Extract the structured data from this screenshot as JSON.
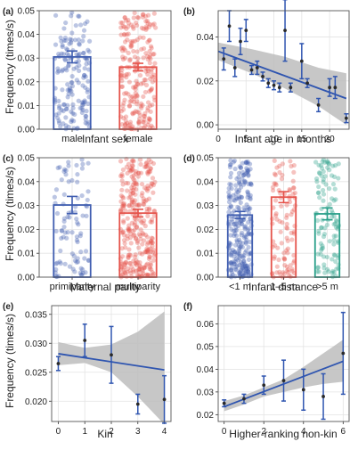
{
  "figure": {
    "ylabel": "Frequency (times/s)"
  },
  "chart_data": [
    {
      "id": "a",
      "panel_label": "(a)",
      "type": "bar",
      "xlabel": "Infant sex",
      "categories": [
        "male",
        "female"
      ],
      "values": [
        0.0305,
        0.0262
      ],
      "errors": [
        0.0025,
        0.0016
      ],
      "ylim": [
        0,
        0.05
      ],
      "yticks": [
        0.0,
        0.01,
        0.02,
        0.03,
        0.04,
        0.05
      ],
      "ytick_labels": [
        "0.00",
        "0.01",
        "0.02",
        "0.03",
        "0.04",
        "0.05"
      ],
      "points_per_category": [
        160,
        230
      ],
      "colors": [
        "#3f5db0",
        "#e5534b"
      ],
      "grid": true
    },
    {
      "id": "b",
      "panel_label": "(b)",
      "type": "scatter",
      "xlabel": "Infant age in months",
      "x": [
        1,
        2,
        3,
        4,
        5,
        6,
        7,
        8,
        9,
        10,
        11,
        12,
        13,
        15,
        16,
        18,
        20,
        21,
        23
      ],
      "y": [
        0.03,
        0.045,
        0.026,
        0.038,
        0.043,
        0.025,
        0.026,
        0.022,
        0.019,
        0.018,
        0.017,
        0.043,
        0.017,
        0.029,
        0.019,
        0.009,
        0.017,
        0.017,
        0.003
      ],
      "err": [
        0.005,
        0.007,
        0.004,
        0.006,
        0.005,
        0.002,
        0.003,
        0.002,
        0.002,
        0.002,
        0.002,
        0.014,
        0.002,
        0.008,
        0.002,
        0.003,
        0.004,
        0.005,
        0.002
      ],
      "fit": {
        "x": [
          0,
          23
        ],
        "y": [
          0.0335,
          0.012
        ]
      },
      "band_lower": [
        0.0295,
        0.0235,
        0.0165,
        0.0085,
        0.0
      ],
      "band_upper": [
        0.0375,
        0.0345,
        0.031,
        0.026,
        0.0235
      ],
      "band_x": [
        0,
        6,
        12,
        18,
        23
      ],
      "xlim": [
        0,
        23.5
      ],
      "ylim": [
        -0.002,
        0.052
      ],
      "xticks": [
        0,
        5,
        10,
        15,
        20
      ],
      "yticks": [
        0.0,
        0.02,
        0.04
      ],
      "ytick_labels": [
        "0.00",
        "0.02",
        "0.04"
      ],
      "grid": true
    },
    {
      "id": "c",
      "panel_label": "(c)",
      "type": "bar",
      "xlabel": "Maternal parity",
      "categories": [
        "primiparity",
        "multiparity"
      ],
      "values": [
        0.0302,
        0.0268
      ],
      "errors": [
        0.0036,
        0.0016
      ],
      "ylim": [
        0,
        0.05
      ],
      "yticks": [
        0.0,
        0.01,
        0.02,
        0.03,
        0.04,
        0.05
      ],
      "ytick_labels": [
        "0.00",
        "0.01",
        "0.02",
        "0.03",
        "0.04",
        "0.05"
      ],
      "points_per_category": [
        90,
        300
      ],
      "colors": [
        "#3f5db0",
        "#e5534b"
      ],
      "grid": true
    },
    {
      "id": "d",
      "panel_label": "(d)",
      "type": "bar",
      "xlabel": "Infant distance",
      "categories": [
        "<1 m",
        "1–5 m",
        ">5 m"
      ],
      "values": [
        0.026,
        0.0335,
        0.0265
      ],
      "errors": [
        0.0015,
        0.0023,
        0.0025
      ],
      "ylim": [
        0,
        0.05
      ],
      "yticks": [
        0.0,
        0.01,
        0.02,
        0.03,
        0.04,
        0.05
      ],
      "ytick_labels": [
        "0.00",
        "0.01",
        "0.02",
        "0.03",
        "0.04",
        "0.05"
      ],
      "points_per_category": [
        260,
        100,
        110
      ],
      "colors": [
        "#3f5db0",
        "#e5534b",
        "#2aa08a"
      ],
      "grid": true
    },
    {
      "id": "e",
      "panel_label": "(e)",
      "type": "scatter",
      "xlabel": "Kin",
      "x": [
        0,
        1,
        2,
        3,
        4
      ],
      "y": [
        0.0265,
        0.0305,
        0.028,
        0.0195,
        0.0203
      ],
      "err": [
        0.0012,
        0.0028,
        0.0049,
        0.0017,
        0.0041
      ],
      "fit": {
        "x": [
          0,
          4
        ],
        "y": [
          0.0282,
          0.0254
        ]
      },
      "band_x": [
        0,
        1,
        2,
        3,
        4
      ],
      "band_lower": [
        0.0262,
        0.0266,
        0.025,
        0.0208,
        0.016
      ],
      "band_upper": [
        0.0302,
        0.0292,
        0.0298,
        0.032,
        0.0355
      ],
      "xlim": [
        -0.25,
        4.25
      ],
      "ylim": [
        0.0165,
        0.0365
      ],
      "xticks": [
        0,
        1,
        2,
        3,
        4
      ],
      "yticks": [
        0.02,
        0.025,
        0.03,
        0.035
      ],
      "ytick_labels": [
        "0.020",
        "0.025",
        "0.030",
        "0.035"
      ],
      "grid": true
    },
    {
      "id": "f",
      "panel_label": "(f)",
      "type": "scatter",
      "xlabel": "Higher-ranking non-kin",
      "x": [
        0,
        1,
        2,
        3,
        4,
        5,
        6
      ],
      "y": [
        0.025,
        0.027,
        0.033,
        0.035,
        0.031,
        0.028,
        0.047
      ],
      "err": [
        0.0015,
        0.002,
        0.004,
        0.009,
        0.009,
        0.01,
        0.018
      ],
      "fit": {
        "x": [
          0,
          6
        ],
        "y": [
          0.0235,
          0.0435
        ]
      },
      "band_x": [
        0,
        1,
        2,
        3,
        4,
        5,
        6
      ],
      "band_lower": [
        0.0215,
        0.0245,
        0.028,
        0.03,
        0.032,
        0.0335,
        0.0345
      ],
      "band_upper": [
        0.026,
        0.0285,
        0.032,
        0.0355,
        0.041,
        0.047,
        0.053
      ],
      "xlim": [
        -0.3,
        6.3
      ],
      "ylim": [
        0.017,
        0.068
      ],
      "xticks": [
        0,
        2,
        4,
        6
      ],
      "yticks": [
        0.02,
        0.03,
        0.04,
        0.05,
        0.06
      ],
      "ytick_labels": [
        "0.02",
        "0.03",
        "0.04",
        "0.05",
        "0.06"
      ],
      "grid": true
    }
  ]
}
